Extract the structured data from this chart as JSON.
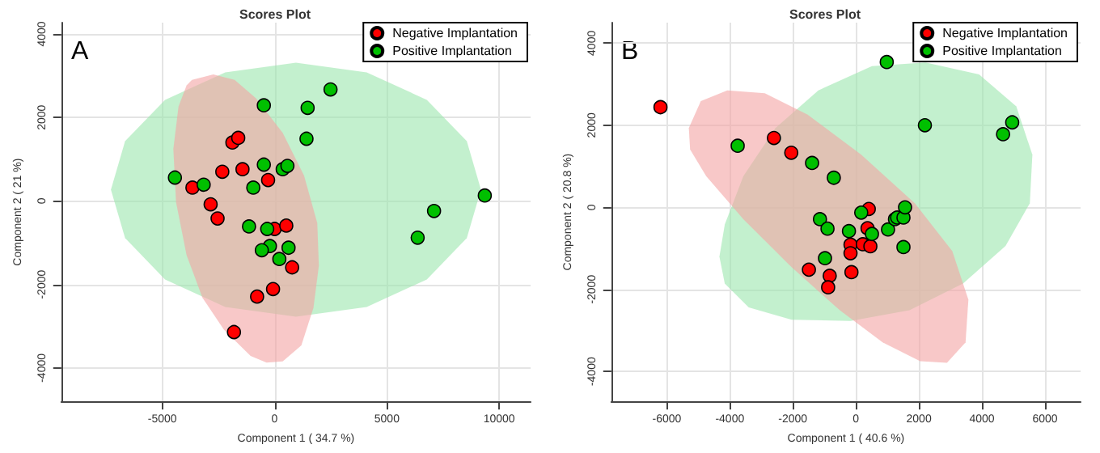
{
  "chart_data": [
    {
      "type": "scatter",
      "title": "Scores Plot",
      "xlabel": "Component 1 ( 34.7 %)",
      "ylabel": "Component 2 ( 21 %)",
      "annotations": [
        "A"
      ],
      "xlim": [
        -9500,
        11400
      ],
      "ylim": [
        -4800,
        4270
      ],
      "xticks": [
        -5000,
        0,
        5000,
        10000
      ],
      "yticks": [
        -4000,
        -2000,
        0,
        2000,
        4000
      ],
      "grid": true,
      "legend": "top right",
      "marker": "circle",
      "series": [
        {
          "type": "area",
          "marker": "none",
          "color": "#9be6ad",
          "x": [
            9190,
            8560,
            6780,
            4100,
            950,
            -2200,
            -4880,
            -6660,
            -7290,
            -6660,
            -4880,
            -2200,
            950,
            4100,
            6780,
            8560
          ],
          "values": [
            270,
            1430,
            2420,
            3080,
            3310,
            3080,
            2420,
            1430,
            270,
            -890,
            -1880,
            -2540,
            -2770,
            -2540,
            -1880,
            -890
          ]
        },
        {
          "type": "area",
          "marker": "none",
          "color": "#f4a3a3",
          "x": [
            -3680,
            -2730,
            -1780,
            -830,
            360,
            1310,
            1900,
            1970,
            1730,
            1190,
            360,
            -360,
            -1070,
            -2260,
            -3210,
            -3920,
            -4390,
            -4510,
            -4280,
            -3920
          ],
          "values": [
            2900,
            3030,
            2900,
            2460,
            1630,
            610,
            -530,
            -1550,
            -2560,
            -3460,
            -3840,
            -3870,
            -3710,
            -3080,
            -2320,
            -1300,
            -30,
            1250,
            2260,
            2770
          ]
        },
        {
          "name": "Negative Implantation",
          "color": "#ff0000",
          "x": [
            -1880,
            -1620,
            -2330,
            -1430,
            -3660,
            -2850,
            -2540,
            -290,
            0,
            520,
            780,
            -780,
            -70,
            -1810
          ],
          "values": [
            1400,
            1510,
            700,
            760,
            320,
            -80,
            -420,
            500,
            -670,
            -590,
            -1590,
            -2290,
            -2110,
            -3140
          ]
        },
        {
          "name": "Positive Implantation",
          "color": "#00c000",
          "x": [
            -4440,
            -3160,
            -950,
            -480,
            360,
            570,
            -480,
            1470,
            1420,
            2490,
            -1140,
            -330,
            -210,
            -570,
            620,
            210,
            7100,
            6370,
            9360
          ],
          "values": [
            560,
            390,
            320,
            870,
            760,
            840,
            2290,
            2230,
            1490,
            2670,
            -610,
            -670,
            -1080,
            -1180,
            -1120,
            -1390,
            -240,
            -880,
            130
          ]
        }
      ]
    },
    {
      "type": "scatter",
      "title": "Scores Plot",
      "xlabel": "Component 1 ( 40.6 %)",
      "ylabel": "Component 2 ( 20.8 %)",
      "annotations": [
        "B"
      ],
      "xlim": [
        -7760,
        7130
      ],
      "ylim": [
        -4730,
        4500
      ],
      "xticks": [
        -6000,
        -4000,
        -2000,
        0,
        2000,
        4000,
        6000
      ],
      "yticks": [
        -4000,
        -2000,
        0,
        2000,
        4000
      ],
      "grid": true,
      "legend": "top right",
      "marker": "circle",
      "series": [
        {
          "type": "area",
          "marker": "none",
          "color": "#9be6ad",
          "x": [
            -4330,
            -4160,
            -3570,
            -2550,
            -1190,
            510,
            2210,
            3910,
            5090,
            5600,
            5520,
            4750,
            3400,
            1700,
            -170,
            -2040,
            -3400,
            -4160
          ],
          "values": [
            -1200,
            -420,
            760,
            1930,
            2850,
            3440,
            3530,
            3240,
            2460,
            1280,
            100,
            -940,
            -1860,
            -2510,
            -2770,
            -2740,
            -2440,
            -1860
          ]
        },
        {
          "type": "area",
          "marker": "none",
          "color": "#f4a3a3",
          "x": [
            -5300,
            -4920,
            -4080,
            -2890,
            -1530,
            170,
            1870,
            3060,
            3570,
            3480,
            2890,
            2040,
            850,
            -510,
            -2040,
            -3570,
            -4750,
            -5260
          ],
          "values": [
            1930,
            2590,
            2850,
            2780,
            2260,
            1280,
            100,
            -1070,
            -2250,
            -3290,
            -3790,
            -3750,
            -3290,
            -2510,
            -1460,
            -290,
            760,
            1410
          ]
        },
        {
          "name": "Negative Implantation",
          "color": "#ff0000",
          "x": [
            -6200,
            -2600,
            -2050,
            410,
            370,
            -170,
            -170,
            220,
            460,
            -1490,
            -830,
            -140,
            -880
          ],
          "values": [
            2440,
            1690,
            1330,
            -40,
            -510,
            -910,
            -1120,
            -900,
            -950,
            -1520,
            -1670,
            -1580,
            -1950
          ]
        },
        {
          "name": "Positive Implantation",
          "color": "#00c000",
          "x": [
            -3750,
            -1390,
            -700,
            980,
            2190,
            4670,
            4960,
            -1140,
            -900,
            170,
            -220,
            510,
            1020,
            1240,
            1310,
            1510,
            1560,
            1510,
            -980
          ],
          "values": [
            1500,
            1080,
            720,
            3540,
            2000,
            1780,
            2070,
            -290,
            -520,
            -130,
            -580,
            -650,
            -540,
            -290,
            -250,
            -250,
            0,
            -970,
            -1240
          ]
        }
      ]
    }
  ]
}
